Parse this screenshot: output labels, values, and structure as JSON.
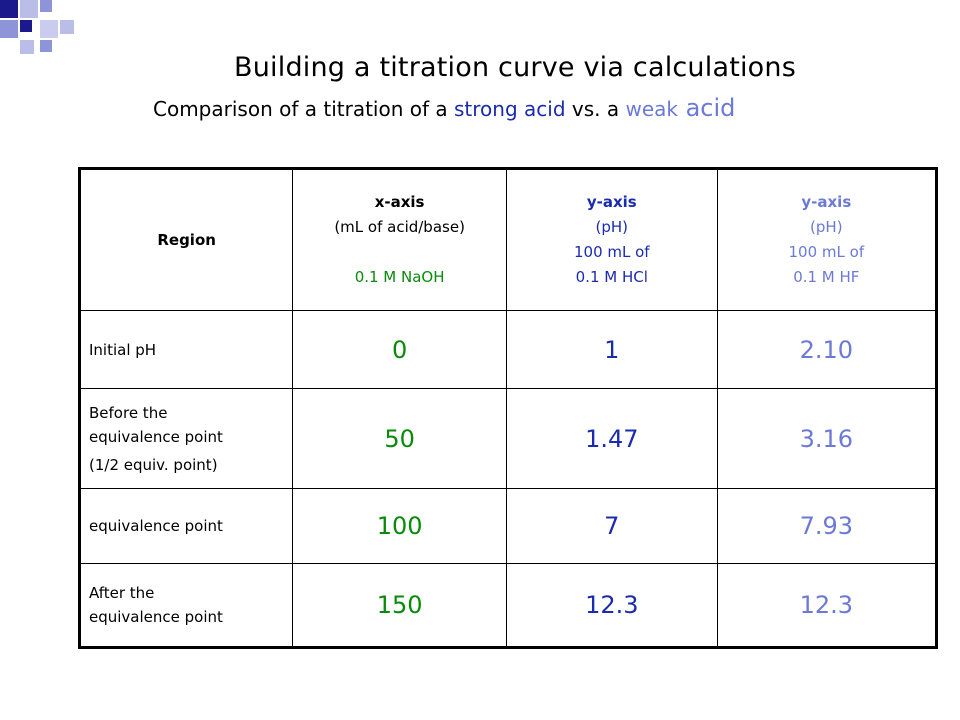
{
  "title": "Building a titration curve via calculations",
  "subtitle": {
    "prefix": "Comparison of a titration of a ",
    "strong": "strong acid",
    "middle": " vs. a ",
    "weak": "weak",
    "suffix": " acid"
  },
  "colors": {
    "green": "#0a8a0a",
    "blue": "#1a2bb0",
    "lavender": "#6c79d6"
  },
  "table": {
    "headers": {
      "region": "Region",
      "x": {
        "title": "x-axis",
        "unit": "(mL of acid/base)",
        "solution": "0.1 M NaOH"
      },
      "y_strong": {
        "title": "y-axis",
        "unit": "(pH)",
        "volume": "100 mL of",
        "solution": "0.1 M HCl"
      },
      "y_weak": {
        "title": "y-axis",
        "unit": "(pH)",
        "volume": "100 mL of",
        "solution": "0.1 M HF"
      }
    },
    "rows": [
      {
        "region": "Initial pH",
        "x": "0",
        "y_strong": "1",
        "y_weak": "2.10"
      },
      {
        "region_lines": [
          "Before the",
          "equivalence point",
          "(1/2 equiv. point)"
        ],
        "x": "50",
        "y_strong": "1.47",
        "y_weak": "3.16"
      },
      {
        "region": "equivalence point",
        "x": "100",
        "y_strong": "7",
        "y_weak": "7.93"
      },
      {
        "region_lines": [
          "After the",
          "equivalence point"
        ],
        "x": "150",
        "y_strong": "12.3",
        "y_weak": "12.3"
      }
    ]
  }
}
